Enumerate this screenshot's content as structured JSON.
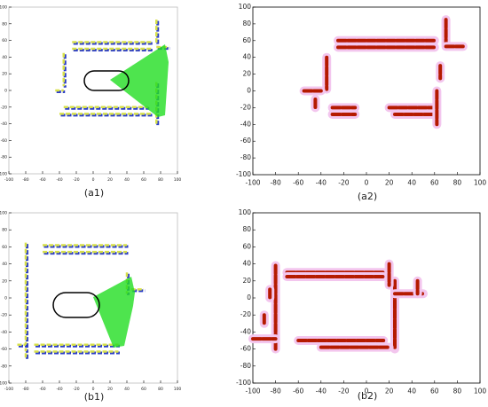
{
  "chart_data": [
    {
      "type": "scan",
      "caption": "(a1)",
      "xlim": [
        -100,
        100
      ],
      "ylim": [
        -100,
        100
      ],
      "xticks": [
        -100,
        -80,
        -60,
        -40,
        -20,
        0,
        20,
        40,
        60,
        80,
        100
      ],
      "yticks": [
        -100,
        -80,
        -60,
        -40,
        -20,
        0,
        20,
        40,
        60,
        80,
        100
      ],
      "segments": [
        [
          -25,
          58,
          70,
          58
        ],
        [
          -25,
          50,
          70,
          50
        ],
        [
          75,
          85,
          75,
          55
        ],
        [
          75,
          52,
          90,
          52
        ],
        [
          -35,
          45,
          -35,
          5
        ],
        [
          -45,
          0,
          -35,
          0
        ],
        [
          -40,
          -28,
          70,
          -28
        ],
        [
          -35,
          -20,
          65,
          -20
        ],
        [
          75,
          10,
          75,
          -40
        ]
      ]
    },
    {
      "type": "map",
      "caption": "(a2)",
      "xlim": [
        -100,
        100
      ],
      "ylim": [
        -100,
        100
      ],
      "xticks": [
        -100,
        -80,
        -60,
        -40,
        -20,
        0,
        20,
        40,
        60,
        80,
        100
      ],
      "yticks": [
        -100,
        -80,
        -60,
        -40,
        -20,
        0,
        20,
        40,
        60,
        80,
        100
      ],
      "segments": [
        [
          -25,
          60,
          60,
          60
        ],
        [
          -25,
          52,
          60,
          52
        ],
        [
          70,
          85,
          70,
          55
        ],
        [
          70,
          53,
          85,
          53
        ],
        [
          -35,
          40,
          -35,
          2
        ],
        [
          -55,
          0,
          -40,
          0
        ],
        [
          -45,
          -10,
          -45,
          -20
        ],
        [
          -30,
          -20,
          -10,
          -20
        ],
        [
          -30,
          -28,
          -10,
          -28
        ],
        [
          20,
          -20,
          60,
          -20
        ],
        [
          25,
          -28,
          60,
          -28
        ],
        [
          62,
          0,
          62,
          -40
        ],
        [
          65,
          30,
          65,
          15
        ]
      ]
    },
    {
      "type": "scan",
      "caption": "(b1)",
      "xlim": [
        -100,
        100
      ],
      "ylim": [
        -100,
        100
      ],
      "xticks": [
        -100,
        -80,
        -60,
        -40,
        -20,
        0,
        20,
        40,
        60,
        80,
        100
      ],
      "yticks": [
        -100,
        -80,
        -60,
        -40,
        -20,
        0,
        20,
        40,
        60,
        80,
        100
      ],
      "segments": [
        [
          -60,
          62,
          40,
          62
        ],
        [
          -60,
          54,
          40,
          54
        ],
        [
          -80,
          65,
          -80,
          -60
        ],
        [
          -70,
          -55,
          30,
          -55
        ],
        [
          -70,
          -63,
          30,
          -63
        ],
        [
          -90,
          -55,
          -80,
          -55
        ],
        [
          -80,
          -70,
          -80,
          -60
        ],
        [
          40,
          30,
          40,
          5
        ],
        [
          45,
          10,
          60,
          10
        ]
      ]
    },
    {
      "type": "map",
      "caption": "(b2)",
      "xlim": [
        -100,
        100
      ],
      "ylim": [
        -100,
        100
      ],
      "xticks": [
        -100,
        -80,
        -60,
        -40,
        -20,
        0,
        20,
        40,
        60,
        80,
        100
      ],
      "yticks": [
        -100,
        -80,
        -60,
        -40,
        -20,
        0,
        20,
        40,
        60,
        80,
        100
      ],
      "segments": [
        [
          -70,
          30,
          15,
          30
        ],
        [
          -70,
          25,
          15,
          25
        ],
        [
          -80,
          38,
          -80,
          -60
        ],
        [
          -100,
          -48,
          -80,
          -48
        ],
        [
          -90,
          -20,
          -90,
          -30
        ],
        [
          -85,
          10,
          -85,
          0
        ],
        [
          25,
          20,
          25,
          -60
        ],
        [
          25,
          5,
          50,
          5
        ],
        [
          45,
          20,
          45,
          5
        ],
        [
          -60,
          -50,
          15,
          -50
        ],
        [
          -40,
          -58,
          20,
          -58
        ],
        [
          20,
          40,
          20,
          15
        ]
      ]
    }
  ]
}
